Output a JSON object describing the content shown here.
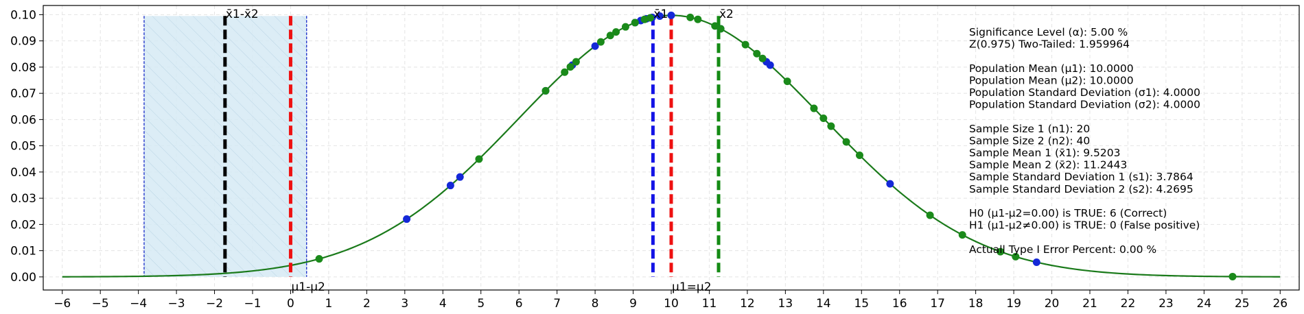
{
  "chart_data": {
    "type": "line",
    "title": "",
    "xlabel": "",
    "ylabel": "",
    "xlim": [
      -6.5,
      26.5
    ],
    "ylim": [
      -0.005,
      0.1035
    ],
    "xticks": [
      -6,
      -5,
      -4,
      -3,
      -2,
      -1,
      0,
      1,
      2,
      3,
      4,
      5,
      6,
      7,
      8,
      9,
      10,
      11,
      12,
      13,
      14,
      15,
      16,
      17,
      18,
      19,
      20,
      21,
      22,
      23,
      24,
      25,
      26
    ],
    "yticks": [
      0.0,
      0.01,
      0.02,
      0.03,
      0.04,
      0.05,
      0.06,
      0.07,
      0.08,
      0.09,
      0.1
    ],
    "ytick_labels": [
      "0.00",
      "0.01",
      "0.02",
      "0.03",
      "0.04",
      "0.05",
      "0.06",
      "0.07",
      "0.08",
      "0.09",
      "0.10"
    ],
    "grid": true,
    "colors": {
      "curve": "#1a7a1a",
      "sample1_points": "#1428d8",
      "sample2_points": "#1a8a1a",
      "ci_fill": "#d6eaf4",
      "ci_border": "#1428c8",
      "mean_diff": "#000000",
      "hypothesis": "#ee1111",
      "sample1_mean": "#1414e6",
      "sample2_mean": "#148a14"
    },
    "curve": {
      "mean": 10.0,
      "sd": 4.0,
      "x_start": -6,
      "x_end": 26
    },
    "ci_band": {
      "x0": -3.85,
      "x1": 0.42,
      "y_top": 0.0995
    },
    "vlines": [
      {
        "x": -1.724,
        "y_top": 0.0995,
        "color": "#000000",
        "label": "x̄1-x̄2",
        "label_pos": "top"
      },
      {
        "x": 0.0,
        "y_top": 0.0995,
        "color": "#ee1111",
        "label": "μ1-μ2",
        "label_pos": "bottom"
      },
      {
        "x": 9.5203,
        "y_top": 0.0995,
        "color": "#1414e6",
        "label": "x̄1",
        "label_pos": "top"
      },
      {
        "x": 10.0,
        "y_top": 0.0995,
        "color": "#ee1111",
        "label": "μ1=μ2",
        "label_pos": "bottom"
      },
      {
        "x": 11.2443,
        "y_top": 0.0995,
        "color": "#148a14",
        "label": "x̄2",
        "label_pos": "top"
      }
    ],
    "sample1_x": [
      3.05,
      4.2,
      4.45,
      6.7,
      7.4,
      8.0,
      9.05,
      9.2,
      9.35,
      9.5,
      9.7,
      10.0,
      11.3,
      12.5,
      12.6,
      15.75,
      19.6
    ],
    "sample2_x": [
      0.75,
      4.95,
      6.7,
      7.2,
      7.35,
      7.5,
      8.15,
      8.4,
      8.55,
      8.8,
      9.05,
      9.3,
      9.45,
      10.5,
      10.7,
      11.15,
      11.3,
      11.95,
      12.25,
      12.4,
      13.05,
      13.75,
      14.0,
      14.2,
      14.6,
      14.95,
      16.8,
      17.65,
      18.65,
      19.05,
      24.75
    ]
  },
  "stats": [
    "Significance Level (α): 5.00 %",
    "Z(0.975) Two-Tailed: 1.959964",
    "",
    "Population Mean (μ1): 10.0000",
    "Population Mean (μ2): 10.0000",
    "Population Standard Deviation (σ1): 4.0000",
    "Population Standard Deviation (σ2): 4.0000",
    "",
    "Sample Size 1 (n1): 20",
    "Sample Size 2 (n2): 40",
    "Sample Mean 1 (x̄1): 9.5203",
    "Sample Mean 2 (x̄2): 11.2443",
    "Sample Standard Deviation 1 (s1): 3.7864",
    "Sample Standard Deviation 2 (s2): 4.2695",
    "",
    "H0 (μ1-μ2=0.00) is TRUE: 6 (Correct)",
    "H1 (μ1-μ2≠0.00) is TRUE: 0 (False positive)",
    "",
    "Actuall Type I Error Percent: 0.00 %"
  ]
}
